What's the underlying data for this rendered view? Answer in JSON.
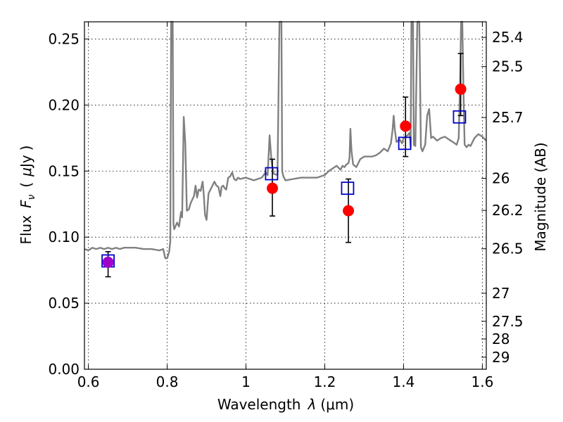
{
  "chart_data": {
    "type": "scatter",
    "xlabel": "Wavelength",
    "xlabel_symbol": "λ",
    "xlabel_unit": "(μm)",
    "ylabel": "Flux",
    "ylabel_symbol": "F",
    "ylabel_subscript": "ν",
    "ylabel_unit_open": "(",
    "ylabel_unit_mu": "μ",
    "ylabel_unit": "Jy",
    "ylabel_unit_close": ")",
    "y2label": "Magnitude (AB)",
    "xlim": [
      0.59,
      1.61
    ],
    "ylim": [
      0.0,
      0.263
    ],
    "grid": true,
    "x_ticks": [
      {
        "value": 0.6,
        "label": "0.6"
      },
      {
        "value": 0.8,
        "label": "0.8"
      },
      {
        "value": 1.0,
        "label": "1"
      },
      {
        "value": 1.2,
        "label": "1.2"
      },
      {
        "value": 1.4,
        "label": "1.4"
      },
      {
        "value": 1.6,
        "label": "1.6"
      }
    ],
    "y_ticks": [
      {
        "value": 0.0,
        "label": "0.00"
      },
      {
        "value": 0.05,
        "label": "0.05"
      },
      {
        "value": 0.1,
        "label": "0.10"
      },
      {
        "value": 0.15,
        "label": "0.15"
      },
      {
        "value": 0.2,
        "label": "0.20"
      },
      {
        "value": 0.25,
        "label": "0.25"
      }
    ],
    "mag_ticks": [
      {
        "value": 25.4,
        "label": "25.4"
      },
      {
        "value": 25.5,
        "label": "25.5"
      },
      {
        "value": 25.7,
        "label": "25.7"
      },
      {
        "value": 26.0,
        "label": "26"
      },
      {
        "value": 26.2,
        "label": "26.2"
      },
      {
        "value": 26.5,
        "label": "26.5"
      },
      {
        "value": 27.0,
        "label": "27"
      },
      {
        "value": 27.5,
        "label": "27.5"
      },
      {
        "value": 28.0,
        "label": "28"
      },
      {
        "value": 29.0,
        "label": "29"
      }
    ],
    "model_spectrum": {
      "color": "#808080",
      "points": [
        [
          0.59,
          0.091
        ],
        [
          0.6,
          0.09
        ],
        [
          0.61,
          0.092
        ],
        [
          0.62,
          0.091
        ],
        [
          0.63,
          0.092
        ],
        [
          0.64,
          0.091
        ],
        [
          0.65,
          0.092
        ],
        [
          0.66,
          0.091
        ],
        [
          0.67,
          0.092
        ],
        [
          0.68,
          0.091
        ],
        [
          0.69,
          0.092
        ],
        [
          0.7,
          0.092
        ],
        [
          0.72,
          0.092
        ],
        [
          0.74,
          0.091
        ],
        [
          0.76,
          0.091
        ],
        [
          0.78,
          0.09
        ],
        [
          0.79,
          0.091
        ],
        [
          0.795,
          0.084
        ],
        [
          0.8,
          0.084
        ],
        [
          0.805,
          0.089
        ],
        [
          0.808,
          0.097
        ],
        [
          0.81,
          0.263
        ],
        [
          0.812,
          0.263
        ],
        [
          0.814,
          0.263
        ],
        [
          0.816,
          0.11
        ],
        [
          0.818,
          0.106
        ],
        [
          0.825,
          0.111
        ],
        [
          0.83,
          0.108
        ],
        [
          0.835,
          0.119
        ],
        [
          0.838,
          0.115
        ],
        [
          0.842,
          0.191
        ],
        [
          0.846,
          0.171
        ],
        [
          0.85,
          0.12
        ],
        [
          0.855,
          0.121
        ],
        [
          0.86,
          0.126
        ],
        [
          0.868,
          0.131
        ],
        [
          0.872,
          0.139
        ],
        [
          0.876,
          0.13
        ],
        [
          0.88,
          0.136
        ],
        [
          0.885,
          0.135
        ],
        [
          0.89,
          0.142
        ],
        [
          0.893,
          0.132
        ],
        [
          0.896,
          0.117
        ],
        [
          0.9,
          0.113
        ],
        [
          0.905,
          0.133
        ],
        [
          0.91,
          0.136
        ],
        [
          0.915,
          0.139
        ],
        [
          0.92,
          0.142
        ],
        [
          0.925,
          0.139
        ],
        [
          0.93,
          0.138
        ],
        [
          0.935,
          0.131
        ],
        [
          0.938,
          0.138
        ],
        [
          0.942,
          0.139
        ],
        [
          0.946,
          0.137
        ],
        [
          0.95,
          0.136
        ],
        [
          0.955,
          0.145
        ],
        [
          0.96,
          0.146
        ],
        [
          0.965,
          0.149
        ],
        [
          0.97,
          0.144
        ],
        [
          0.975,
          0.143
        ],
        [
          0.98,
          0.145
        ],
        [
          0.985,
          0.144
        ],
        [
          1.0,
          0.145
        ],
        [
          1.02,
          0.143
        ],
        [
          1.04,
          0.145
        ],
        [
          1.05,
          0.149
        ],
        [
          1.055,
          0.147
        ],
        [
          1.06,
          0.177
        ],
        [
          1.065,
          0.157
        ],
        [
          1.07,
          0.148
        ],
        [
          1.08,
          0.147
        ],
        [
          1.085,
          0.263
        ],
        [
          1.09,
          0.263
        ],
        [
          1.092,
          0.15
        ],
        [
          1.095,
          0.146
        ],
        [
          1.1,
          0.143
        ],
        [
          1.12,
          0.144
        ],
        [
          1.14,
          0.145
        ],
        [
          1.16,
          0.145
        ],
        [
          1.18,
          0.145
        ],
        [
          1.2,
          0.147
        ],
        [
          1.21,
          0.15
        ],
        [
          1.22,
          0.152
        ],
        [
          1.23,
          0.154
        ],
        [
          1.24,
          0.151
        ],
        [
          1.245,
          0.154
        ],
        [
          1.25,
          0.153
        ],
        [
          1.255,
          0.155
        ],
        [
          1.26,
          0.156
        ],
        [
          1.263,
          0.16
        ],
        [
          1.265,
          0.182
        ],
        [
          1.268,
          0.165
        ],
        [
          1.272,
          0.155
        ],
        [
          1.28,
          0.153
        ],
        [
          1.29,
          0.159
        ],
        [
          1.3,
          0.161
        ],
        [
          1.31,
          0.161
        ],
        [
          1.32,
          0.161
        ],
        [
          1.33,
          0.162
        ],
        [
          1.34,
          0.164
        ],
        [
          1.35,
          0.167
        ],
        [
          1.36,
          0.165
        ],
        [
          1.368,
          0.171
        ],
        [
          1.372,
          0.181
        ],
        [
          1.375,
          0.192
        ],
        [
          1.378,
          0.181
        ],
        [
          1.382,
          0.172
        ],
        [
          1.39,
          0.174
        ],
        [
          1.396,
          0.171
        ],
        [
          1.4,
          0.175
        ],
        [
          1.41,
          0.177
        ],
        [
          1.415,
          0.179
        ],
        [
          1.418,
          0.168
        ],
        [
          1.42,
          0.263
        ],
        [
          1.424,
          0.263
        ],
        [
          1.426,
          0.17
        ],
        [
          1.43,
          0.169
        ],
        [
          1.435,
          0.263
        ],
        [
          1.44,
          0.263
        ],
        [
          1.444,
          0.168
        ],
        [
          1.448,
          0.165
        ],
        [
          1.455,
          0.17
        ],
        [
          1.46,
          0.192
        ],
        [
          1.465,
          0.197
        ],
        [
          1.47,
          0.175
        ],
        [
          1.475,
          0.176
        ],
        [
          1.485,
          0.173
        ],
        [
          1.495,
          0.175
        ],
        [
          1.505,
          0.176
        ],
        [
          1.515,
          0.174
        ],
        [
          1.525,
          0.172
        ],
        [
          1.535,
          0.17
        ],
        [
          1.54,
          0.175
        ],
        [
          1.543,
          0.211
        ],
        [
          1.546,
          0.263
        ],
        [
          1.549,
          0.263
        ],
        [
          1.552,
          0.213
        ],
        [
          1.555,
          0.17
        ],
        [
          1.56,
          0.168
        ],
        [
          1.565,
          0.17
        ],
        [
          1.57,
          0.169
        ],
        [
          1.58,
          0.175
        ],
        [
          1.59,
          0.178
        ],
        [
          1.6,
          0.176
        ],
        [
          1.61,
          0.173
        ]
      ]
    },
    "observed": {
      "marker": "circle",
      "color": "#ff0000",
      "points": [
        {
          "x": 0.65,
          "y": 0.081,
          "err_lo": 0.011,
          "err_hi": 0.008,
          "color": "#a000c8"
        },
        {
          "x": 1.067,
          "y": 0.137,
          "err_lo": 0.021,
          "err_hi": 0.022
        },
        {
          "x": 1.26,
          "y": 0.12,
          "err_lo": 0.024,
          "err_hi": 0.024
        },
        {
          "x": 1.405,
          "y": 0.184,
          "err_lo": 0.023,
          "err_hi": 0.022
        },
        {
          "x": 1.545,
          "y": 0.212,
          "err_lo": 0.02,
          "err_hi": 0.027
        }
      ]
    },
    "model_photometry": {
      "marker": "square-open",
      "color": "#0000cc",
      "points": [
        {
          "x": 0.65,
          "y": 0.082
        },
        {
          "x": 1.065,
          "y": 0.148
        },
        {
          "x": 1.258,
          "y": 0.137
        },
        {
          "x": 1.403,
          "y": 0.171
        },
        {
          "x": 1.542,
          "y": 0.191
        }
      ]
    }
  }
}
